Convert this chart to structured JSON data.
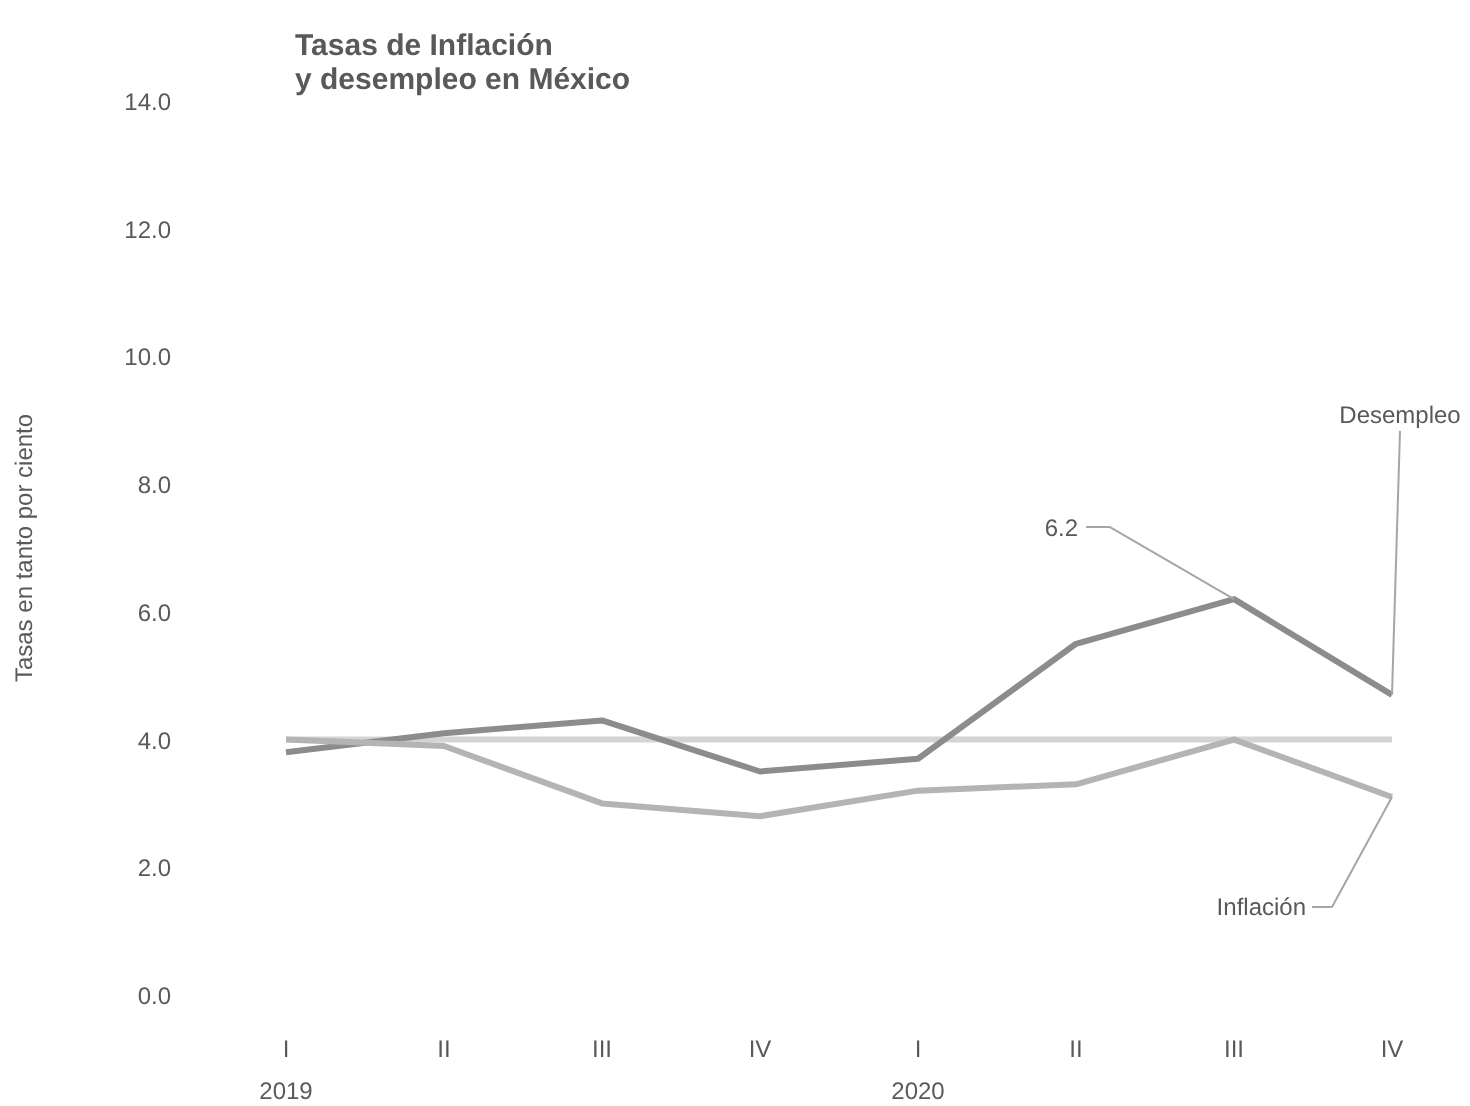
{
  "chart_data": {
    "type": "line",
    "title": "Tasas de Inflación\ny desempleo en México",
    "ylabel": "Tasas en tanto por ciento",
    "categories": [
      "I",
      "II",
      "III",
      "IV",
      "I",
      "II",
      "III",
      "IV"
    ],
    "series": [
      {
        "name": "Desempleo",
        "color": "#8c8c8c",
        "values": [
          3.8,
          4.1,
          4.3,
          3.5,
          3.7,
          5.5,
          6.2,
          4.7
        ],
        "value_labels": [
          null,
          null,
          null,
          null,
          null,
          null,
          "6.2",
          null
        ]
      },
      {
        "name": "Inflación",
        "color": "#b4b4b4",
        "values": [
          4.0,
          3.9,
          3.0,
          2.8,
          3.2,
          3.3,
          4.0,
          3.1
        ]
      }
    ],
    "ref_lines": [
      {
        "axis": "y",
        "value": 4.0,
        "color": "#d4d4d4"
      }
    ],
    "ylim": [
      0,
      14
    ],
    "yticks": [
      {
        "value": 0,
        "label": "0.0"
      },
      {
        "value": 2,
        "label": "2.0"
      },
      {
        "value": 4,
        "label": "4.0"
      },
      {
        "value": 6,
        "label": "6.0"
      },
      {
        "value": 8,
        "label": "8.0"
      },
      {
        "value": 10,
        "label": "10.0"
      },
      {
        "value": 12,
        "label": "12.0"
      },
      {
        "value": 14,
        "label": "14.0"
      }
    ],
    "annotations": [
      "2019",
      "2020"
    ],
    "grid": false,
    "marker": "none",
    "line_style": "solid"
  }
}
